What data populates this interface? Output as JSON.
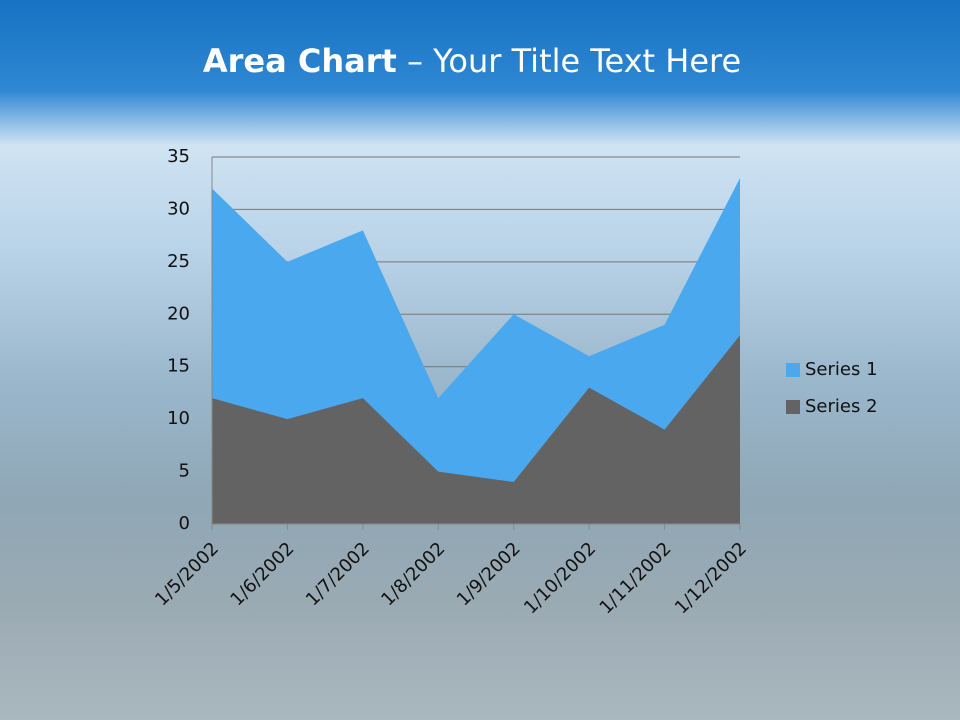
{
  "header": {
    "title_strong": "Area Chart",
    "title_rest": "– Your Title Text Here"
  },
  "chart_data": {
    "type": "area",
    "categories": [
      "1/5/2002",
      "1/6/2002",
      "1/7/2002",
      "1/8/2002",
      "1/9/2002",
      "1/10/2002",
      "1/11/2002",
      "1/12/2002"
    ],
    "series": [
      {
        "name": "Series 1",
        "color": "#4aa8ef",
        "values": [
          32,
          25,
          28,
          12,
          20,
          16,
          19,
          33
        ]
      },
      {
        "name": "Series 2",
        "color": "#636363",
        "values": [
          12,
          10,
          12,
          5,
          4,
          13,
          9,
          18
        ]
      }
    ],
    "ylim": [
      0,
      35
    ],
    "yticks": [
      0,
      5,
      10,
      15,
      20,
      25,
      30,
      35
    ],
    "grid": true,
    "legend": "right"
  }
}
